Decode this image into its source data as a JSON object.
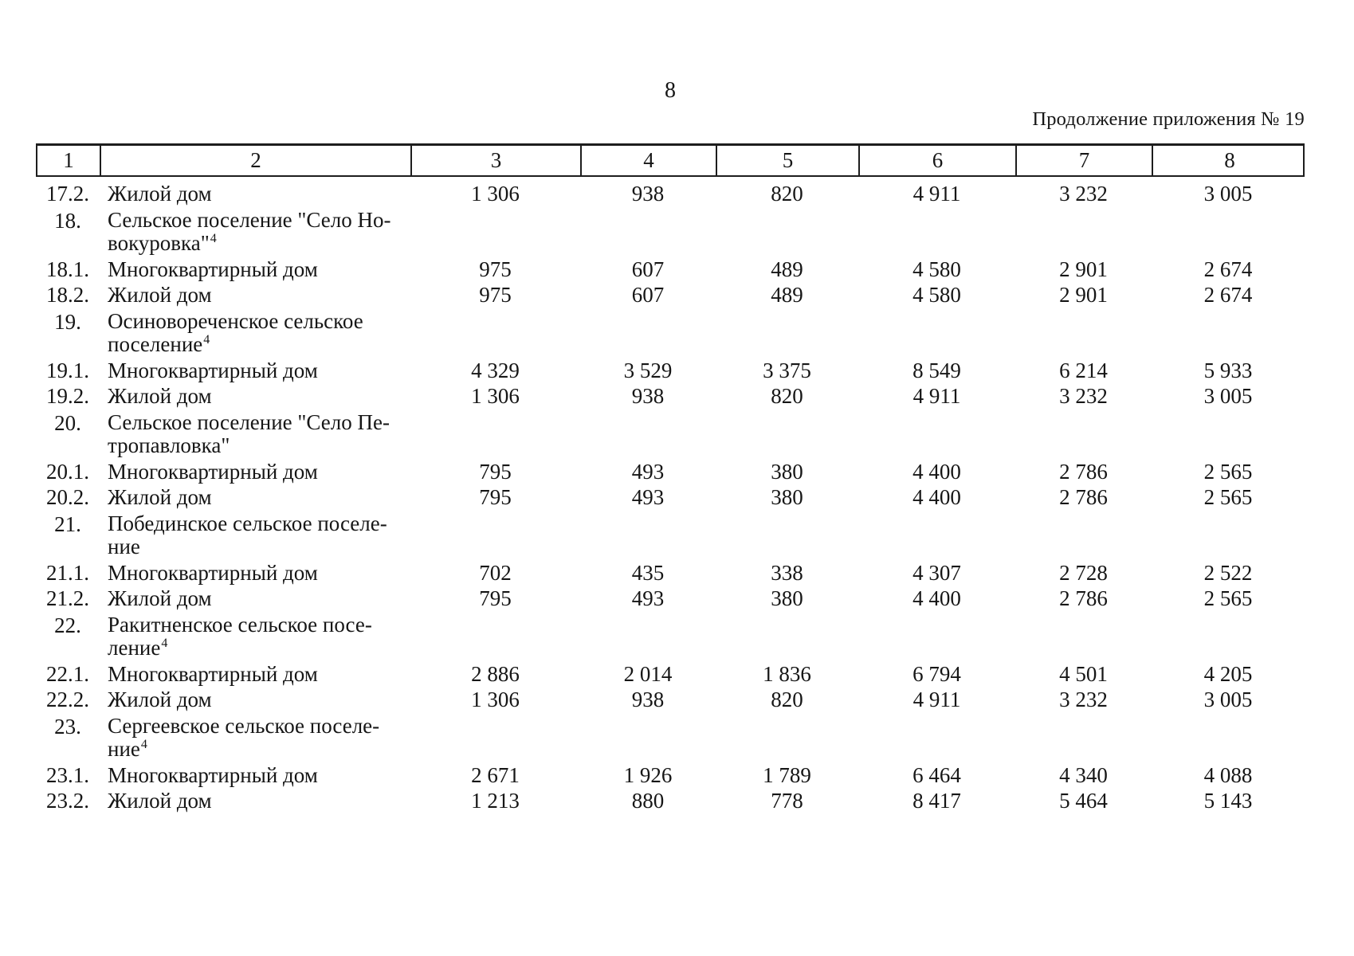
{
  "page": {
    "number": "8",
    "continuation_note": "Продолжение приложения № 19"
  },
  "table": {
    "column_headers": [
      "1",
      "2",
      "3",
      "4",
      "5",
      "6",
      "7",
      "8"
    ],
    "rows": [
      {
        "type": "data",
        "num": "17.2.",
        "name_lines": [
          "Жилой дом"
        ],
        "footnote": "",
        "values": [
          "1 306",
          "938",
          "820",
          "4 911",
          "3 232",
          "3 005"
        ]
      },
      {
        "type": "section",
        "num": "18.",
        "name_lines": [
          "Сельское поселение \"Село Но-",
          "вокуровка\""
        ],
        "footnote": "4",
        "values": []
      },
      {
        "type": "data",
        "num": "18.1.",
        "name_lines": [
          "Многоквартирный дом"
        ],
        "footnote": "",
        "values": [
          "975",
          "607",
          "489",
          "4 580",
          "2 901",
          "2 674"
        ]
      },
      {
        "type": "data",
        "num": "18.2.",
        "name_lines": [
          "Жилой дом"
        ],
        "footnote": "",
        "values": [
          "975",
          "607",
          "489",
          "4 580",
          "2 901",
          "2 674"
        ]
      },
      {
        "type": "section",
        "num": "19.",
        "name_lines": [
          "Осиновореченское сельское",
          "поселение"
        ],
        "footnote": "4",
        "values": []
      },
      {
        "type": "data",
        "num": "19.1.",
        "name_lines": [
          "Многоквартирный дом"
        ],
        "footnote": "",
        "values": [
          "4 329",
          "3 529",
          "3 375",
          "8 549",
          "6 214",
          "5 933"
        ]
      },
      {
        "type": "data",
        "num": "19.2.",
        "name_lines": [
          "Жилой дом"
        ],
        "footnote": "",
        "values": [
          "1 306",
          "938",
          "820",
          "4 911",
          "3 232",
          "3 005"
        ]
      },
      {
        "type": "section",
        "num": "20.",
        "name_lines": [
          "Сельское поселение \"Село Пе-",
          "тропавловка\""
        ],
        "footnote": "",
        "values": []
      },
      {
        "type": "data",
        "num": "20.1.",
        "name_lines": [
          "Многоквартирный дом"
        ],
        "footnote": "",
        "values": [
          "795",
          "493",
          "380",
          "4 400",
          "2 786",
          "2 565"
        ]
      },
      {
        "type": "data",
        "num": "20.2.",
        "name_lines": [
          "Жилой дом"
        ],
        "footnote": "",
        "values": [
          "795",
          "493",
          "380",
          "4 400",
          "2 786",
          "2 565"
        ]
      },
      {
        "type": "section",
        "num": "21.",
        "name_lines": [
          "Побединское сельское поселе-",
          "ние"
        ],
        "footnote": "",
        "values": []
      },
      {
        "type": "data",
        "num": "21.1.",
        "name_lines": [
          "Многоквартирный дом"
        ],
        "footnote": "",
        "values": [
          "702",
          "435",
          "338",
          "4 307",
          "2 728",
          "2 522"
        ]
      },
      {
        "type": "data",
        "num": "21.2.",
        "name_lines": [
          "Жилой дом"
        ],
        "footnote": "",
        "values": [
          "795",
          "493",
          "380",
          "4 400",
          "2 786",
          "2 565"
        ]
      },
      {
        "type": "section",
        "num": "22.",
        "name_lines": [
          "Ракитненское сельское посе-",
          "ление"
        ],
        "footnote": "4",
        "values": []
      },
      {
        "type": "data",
        "num": "22.1.",
        "name_lines": [
          "Многоквартирный дом"
        ],
        "footnote": "",
        "values": [
          "2 886",
          "2 014",
          "1 836",
          "6 794",
          "4 501",
          "4 205"
        ]
      },
      {
        "type": "data",
        "num": "22.2.",
        "name_lines": [
          "Жилой дом"
        ],
        "footnote": "",
        "values": [
          "1 306",
          "938",
          "820",
          "4 911",
          "3 232",
          "3 005"
        ]
      },
      {
        "type": "section",
        "num": "23.",
        "name_lines": [
          "Сергеевское сельское поселе-",
          "ние"
        ],
        "footnote": "4",
        "values": []
      },
      {
        "type": "data",
        "num": "23.1.",
        "name_lines": [
          "Многоквартирный дом"
        ],
        "footnote": "",
        "values": [
          "2 671",
          "1 926",
          "1 789",
          "6 464",
          "4 340",
          "4 088"
        ]
      },
      {
        "type": "data",
        "num": "23.2.",
        "name_lines": [
          "Жилой дом"
        ],
        "footnote": "",
        "values": [
          "1 213",
          "880",
          "778",
          "8 417",
          "5 464",
          "5 143"
        ]
      }
    ]
  }
}
